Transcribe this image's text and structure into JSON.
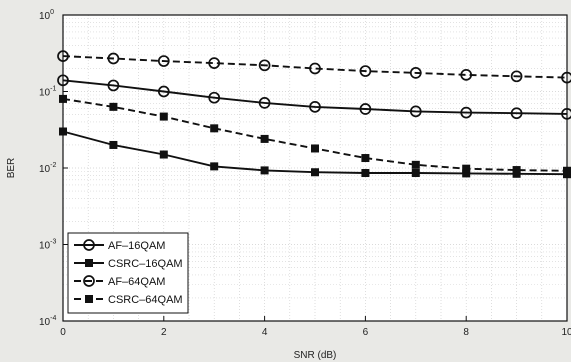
{
  "chart_data": {
    "type": "line",
    "xlabel": "SNR (dB)",
    "ylabel": "BER",
    "xlim": [
      0,
      10
    ],
    "ylim": [
      0.0001,
      1
    ],
    "yscale": "log",
    "x_ticks": [
      "0",
      "2",
      "4",
      "6",
      "8",
      "10"
    ],
    "y_ticks": [
      "10^0",
      "10^-1",
      "10^-2",
      "10^-3",
      "10^-4"
    ],
    "grid": true,
    "legend_position": "bottom-left",
    "x": [
      0,
      1,
      2,
      3,
      4,
      5,
      6,
      7,
      8,
      9,
      10
    ],
    "series": [
      {
        "name": "AF–16QAM",
        "marker": "circle",
        "line": "solid",
        "values": [
          0.14,
          0.12,
          0.1,
          0.083,
          0.071,
          0.063,
          0.059,
          0.055,
          0.053,
          0.052,
          0.051
        ]
      },
      {
        "name": "CSRC–16QAM",
        "marker": "square",
        "line": "solid",
        "values": [
          0.03,
          0.02,
          0.015,
          0.0105,
          0.0093,
          0.0088,
          0.0086,
          0.0086,
          0.0085,
          0.0084,
          0.0083
        ]
      },
      {
        "name": "AF–64QAM",
        "marker": "circle",
        "line": "dashed",
        "values": [
          0.29,
          0.27,
          0.25,
          0.235,
          0.22,
          0.2,
          0.185,
          0.175,
          0.165,
          0.158,
          0.152
        ]
      },
      {
        "name": "CSRC–64QAM",
        "marker": "square",
        "line": "dashed",
        "values": [
          0.08,
          0.063,
          0.047,
          0.033,
          0.024,
          0.018,
          0.0135,
          0.011,
          0.0098,
          0.0094,
          0.0092
        ]
      }
    ]
  }
}
